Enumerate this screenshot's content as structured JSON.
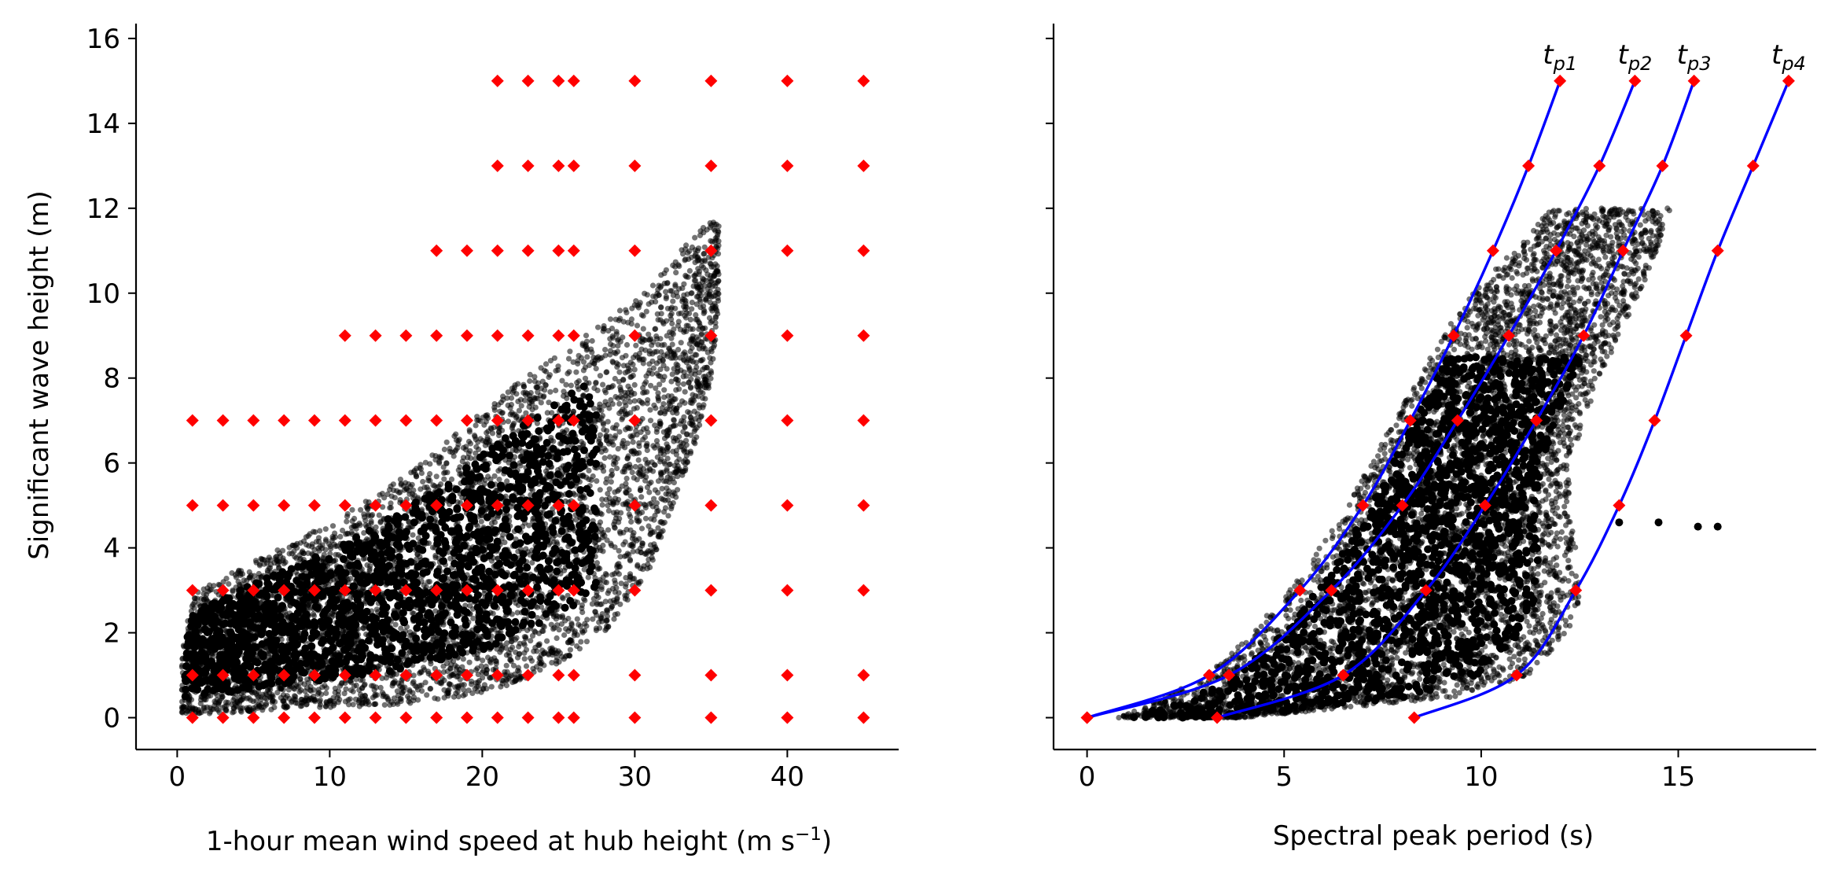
{
  "chart_data": [
    {
      "type": "scatter",
      "xlabel": "1-hour mean wind speed at hub height (m s",
      "xlabel_sup": "−1",
      "xlabel_end": ")",
      "ylabel": "Significant wave height (m)",
      "xlim": [
        -2.7,
        47.3
      ],
      "ylim": [
        -0.75,
        16.35
      ],
      "xticks": [
        0,
        10,
        20,
        30,
        40
      ],
      "yticks": [
        0,
        2,
        4,
        6,
        8,
        10,
        12,
        14,
        16
      ],
      "grid": false,
      "series": [
        {
          "role": "observations",
          "color": "#000000",
          "description_envelope": {
            "x": [
              0.3,
              1,
              3,
              5,
              8,
              11,
              14,
              17,
              20,
              22,
              24,
              26,
              28,
              29,
              30,
              31,
              32,
              33,
              34,
              35,
              35.5
            ],
            "y_low": [
              0.1,
              0.1,
              0.1,
              0.15,
              0.2,
              0.25,
              0.3,
              0.4,
              0.6,
              0.8,
              1.1,
              1.5,
              2.0,
              2.5,
              3.0,
              3.5,
              4.5,
              5.5,
              6.5,
              8.0,
              9.5
            ],
            "y_high": [
              1.5,
              2.9,
              3.3,
              3.7,
              4.2,
              4.8,
              5.5,
              6.3,
              7.2,
              7.8,
              8.3,
              8.8,
              9.3,
              9.6,
              9.8,
              10.2,
              10.6,
              11.0,
              11.4,
              11.8,
              11.6
            ]
          }
        },
        {
          "role": "design points",
          "color": "#ff0000",
          "grid_points": [
            {
              "x": 1,
              "y": [
                0,
                1,
                3,
                5,
                7
              ]
            },
            {
              "x": 3,
              "y": [
                0,
                1,
                3,
                5,
                7
              ]
            },
            {
              "x": 5,
              "y": [
                0,
                1,
                3,
                5,
                7
              ]
            },
            {
              "x": 7,
              "y": [
                0,
                1,
                3,
                5,
                7
              ]
            },
            {
              "x": 9,
              "y": [
                0,
                1,
                3,
                5,
                7
              ]
            },
            {
              "x": 11,
              "y": [
                0,
                1,
                3,
                5,
                7,
                9
              ]
            },
            {
              "x": 13,
              "y": [
                0,
                1,
                3,
                5,
                7,
                9
              ]
            },
            {
              "x": 15,
              "y": [
                0,
                1,
                3,
                5,
                7,
                9
              ]
            },
            {
              "x": 17,
              "y": [
                0,
                1,
                3,
                5,
                7,
                9,
                11
              ]
            },
            {
              "x": 19,
              "y": [
                0,
                1,
                3,
                5,
                7,
                9,
                11
              ]
            },
            {
              "x": 21,
              "y": [
                0,
                1,
                3,
                5,
                7,
                9,
                11,
                13,
                15
              ]
            },
            {
              "x": 23,
              "y": [
                0,
                1,
                3,
                5,
                7,
                9,
                11,
                13,
                15
              ]
            },
            {
              "x": 25,
              "y": [
                0,
                1,
                3,
                5,
                7,
                9,
                11,
                13,
                15
              ]
            },
            {
              "x": 26,
              "y": [
                0,
                1,
                3,
                5,
                7,
                9,
                11,
                13,
                15
              ]
            },
            {
              "x": 30,
              "y": [
                0,
                1,
                3,
                5,
                7,
                9,
                11,
                13,
                15
              ]
            },
            {
              "x": 35,
              "y": [
                0,
                1,
                3,
                5,
                7,
                9,
                11,
                13,
                15
              ]
            },
            {
              "x": 40,
              "y": [
                0,
                1,
                3,
                5,
                7,
                9,
                11,
                13,
                15
              ]
            },
            {
              "x": 45,
              "y": [
                0,
                1,
                3,
                5,
                7,
                9,
                11,
                13,
                15
              ]
            }
          ]
        }
      ]
    },
    {
      "type": "scatter",
      "xlabel": "Spectral peak period (s)",
      "ylabel": "",
      "xlim": [
        -0.85,
        18.5
      ],
      "ylim": [
        -0.75,
        16.35
      ],
      "xticks": [
        0,
        5,
        10,
        15
      ],
      "yticks": [
        0,
        2,
        4,
        6,
        8,
        10,
        12,
        14,
        16
      ],
      "grid": false,
      "series": [
        {
          "role": "observations",
          "color": "#000000",
          "description_envelope": {
            "y": [
              0,
              0.5,
              1,
              2,
              3,
              4,
              5,
              6,
              7,
              8,
              9,
              10,
              11,
              12
            ],
            "x_low": [
              0.8,
              2.0,
              3.0,
              4.2,
              5.1,
              5.9,
              6.6,
              7.2,
              7.8,
              8.4,
              9.0,
              9.8,
              10.8,
              11.8
            ],
            "x_high": [
              4.0,
              9.5,
              11.2,
              12.2,
              12.6,
              12.4,
              12.2,
              12.3,
              12.6,
              13.0,
              13.5,
              14.0,
              14.5,
              14.8
            ]
          },
          "tail_points": [
            [
              13.5,
              4.6
            ],
            [
              14.5,
              4.6
            ],
            [
              15.5,
              4.5
            ],
            [
              16.0,
              4.5
            ]
          ]
        },
        {
          "role": "tp curves",
          "color": "#0000ff",
          "curves": [
            {
              "name": "t",
              "sub": "p1",
              "points": [
                [
                  0,
                  0
                ],
                [
                  3.1,
                  1
                ],
                [
                  5.4,
                  3
                ],
                [
                  7.0,
                  5
                ],
                [
                  8.2,
                  7
                ],
                [
                  9.3,
                  9
                ],
                [
                  10.3,
                  11
                ],
                [
                  11.2,
                  13
                ],
                [
                  12.0,
                  15
                ]
              ]
            },
            {
              "name": "t",
              "sub": "p2",
              "points": [
                [
                  0,
                  0
                ],
                [
                  3.6,
                  1
                ],
                [
                  6.2,
                  3
                ],
                [
                  8.0,
                  5
                ],
                [
                  9.4,
                  7
                ],
                [
                  10.7,
                  9
                ],
                [
                  11.9,
                  11
                ],
                [
                  13.0,
                  13
                ],
                [
                  13.9,
                  15
                ]
              ]
            },
            {
              "name": "t",
              "sub": "p3",
              "points": [
                [
                  3.3,
                  0
                ],
                [
                  6.5,
                  1
                ],
                [
                  8.6,
                  3
                ],
                [
                  10.1,
                  5
                ],
                [
                  11.4,
                  7
                ],
                [
                  12.6,
                  9
                ],
                [
                  13.6,
                  11
                ],
                [
                  14.6,
                  13
                ],
                [
                  15.4,
                  15
                ]
              ]
            },
            {
              "name": "t",
              "sub": "p4",
              "points": [
                [
                  8.3,
                  0
                ],
                [
                  10.9,
                  1
                ],
                [
                  12.4,
                  3
                ],
                [
                  13.5,
                  5
                ],
                [
                  14.4,
                  7
                ],
                [
                  15.2,
                  9
                ],
                [
                  16.0,
                  11
                ],
                [
                  16.9,
                  13
                ],
                [
                  17.8,
                  15
                ]
              ]
            }
          ]
        }
      ]
    }
  ]
}
